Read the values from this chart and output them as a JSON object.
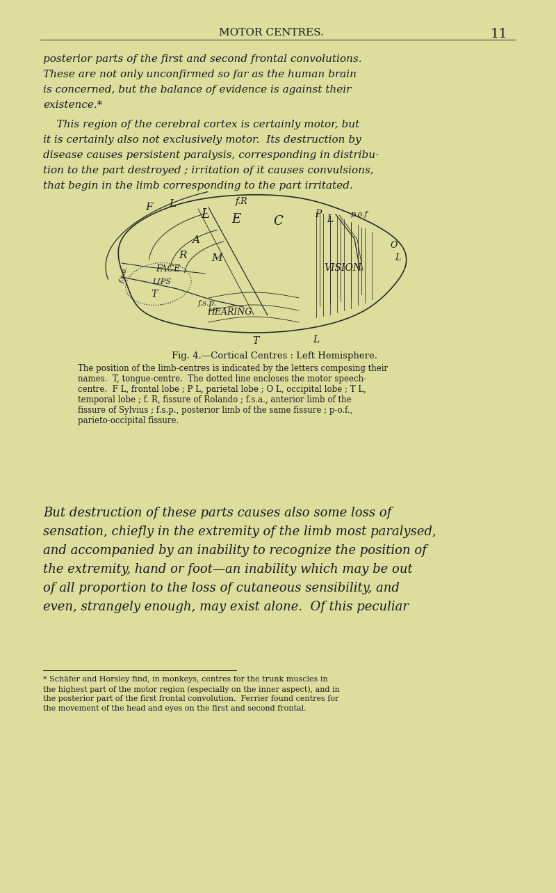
{
  "bg_color": "#dedd9e",
  "text_color": "#1a1a1a",
  "header_text": "MOTOR CENTRES.",
  "page_number": "11",
  "p1_lines": [
    "posterior parts of the first and second frontal convolutions.",
    "These are not only unconfirmed so far as the human brain",
    "is concerned, but the balance of evidence is against their",
    "existence.*"
  ],
  "p2_lines": [
    "    This region of the cerebral cortex is certainly motor, but",
    "it is certainly also not exclusively motor.  Its destruction by",
    "disease causes persistent paralysis, corresponding in distribu-",
    "tion to the part destroyed ; irritation of it causes convulsions,",
    "that begin in the limb corresponding to the part irritated."
  ],
  "fig_caption_title": "Fig. 4.—Cortical Centres : Left Hemisphere.",
  "fig_caption_lines": [
    "The position of the limb-centres is indicated by the letters composing their",
    "names.  T, tongue-centre.  The dotted line encloses the motor speech-",
    "centre.  F L, frontal lobe ; P L, parietal lobe ; O L, occipital lobe ; T L,",
    "temporal lobe ; f. R, fissure of Rolando ; f.s.a., anterior limb of the",
    "fissure of Sylvius ; f.s.p., posterior limb of the same fissure ; p-o.f.,",
    "parieto-occipital fissure."
  ],
  "p3_lines": [
    "But destruction of these parts causes also some loss of",
    "sensation, chiefly in the extremity of the limb most paralysed,",
    "and accompanied by an inability to recognize the position of",
    "the extremity, hand or foot—an inability which may be out",
    "of all proportion to the loss of cutaneous sensibility, and",
    "even, strangely enough, may exist alone.  Of this peculiar"
  ],
  "footnote_lines": [
    "* Schäfer and Horsley find, in monkeys, centres for the trunk muscles in",
    "the highest part of the motor region (especially on the inner aspect), and in",
    "the posterior part of the first frontal convolution.  Ferrier found centres for",
    "the movement of the head and eyes on the first and second frontal."
  ]
}
